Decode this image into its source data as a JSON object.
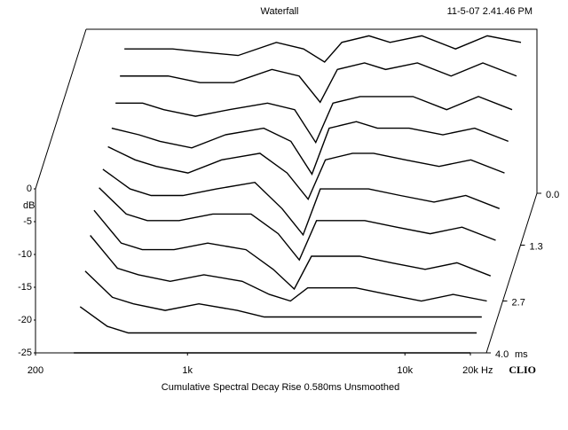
{
  "chart_data": {
    "type": "waterfall",
    "title": "Waterfall",
    "timestamp": "11-5-07 2.41.46 PM",
    "ylabel": "dB",
    "xunit": "Hz",
    "zunit": "ms",
    "caption": "Cumulative Spectral Decay   Rise 0.580ms   Unsmoothed",
    "brand": "CLIO",
    "xscale": "log",
    "xlim": [
      200,
      24000
    ],
    "ylim": [
      -25,
      0
    ],
    "zlim": [
      0,
      4
    ],
    "xticks": [
      200,
      {
        "value": 1000,
        "label": "1k"
      },
      {
        "value": 10000,
        "label": "10k"
      },
      {
        "value": 20000,
        "label": "20k"
      }
    ],
    "yticks": [
      0,
      -5,
      -10,
      -15,
      -20,
      -25
    ],
    "zticks": [
      {
        "value": 0,
        "label": "0.0"
      },
      1.3,
      2.7,
      {
        "value": 4,
        "label": "4.0"
      }
    ],
    "x": [
      300,
      400,
      500,
      700,
      1000,
      1500,
      2000,
      2500,
      3000,
      4000,
      5000,
      7000,
      10000,
      14000,
      20000
    ],
    "slices": [
      {
        "time": 0,
        "values": [
          -3,
          -3,
          -3,
          -3.5,
          -4,
          -2,
          -3,
          -5,
          -2,
          -1,
          -2,
          -1,
          -3,
          -1,
          -2
        ]
      },
      {
        "time": 0.35,
        "values": [
          -5,
          -5,
          -5,
          -6,
          -6,
          -4,
          -5,
          -9,
          -4,
          -3,
          -4,
          -3,
          -5,
          -3,
          -5
        ]
      },
      {
        "time": 0.7,
        "values": [
          -7,
          -7,
          -8,
          -9,
          -8,
          -7,
          -8,
          -13,
          -7,
          -6,
          -6,
          -6,
          -8,
          -6,
          -8
        ]
      },
      {
        "time": 1,
        "values": [
          -9,
          -10,
          -11,
          -12,
          -10,
          -9,
          -11,
          -16,
          -9,
          -8,
          -9,
          -9,
          -10,
          -9,
          -11
        ]
      },
      {
        "time": 1.3,
        "values": [
          -10,
          -12,
          -13,
          -14,
          -12,
          -11,
          -14,
          -18,
          -12,
          -11,
          -11,
          -12,
          -13,
          -12,
          -14
        ]
      },
      {
        "time": 1.7,
        "values": [
          -11,
          -14,
          -15,
          -15,
          -14,
          -13,
          -17,
          -21,
          -14,
          -14,
          -14,
          -15,
          -16,
          -15,
          -17
        ]
      },
      {
        "time": 2,
        "values": [
          -12,
          -16,
          -17,
          -17,
          -16,
          -16,
          -19,
          -23,
          -17,
          -17,
          -17,
          -18,
          -19,
          -18,
          -20
        ]
      },
      {
        "time": 2.4,
        "values": [
          -13,
          -18,
          -19,
          -19,
          -18,
          -19,
          -22,
          -25,
          -20,
          -20,
          -20,
          -21,
          -22,
          -21,
          -23
        ]
      },
      {
        "time": 2.7,
        "values": [
          -15,
          -20,
          -21,
          -22,
          -21,
          -22,
          -24,
          -25,
          -23,
          -23,
          -23,
          -24,
          -25,
          -24,
          -25
        ]
      },
      {
        "time": 3.1,
        "values": [
          -18,
          -22,
          -23,
          -24,
          -23,
          -24,
          -25,
          -25,
          -25,
          -25,
          -25,
          -25,
          -25,
          -25,
          -25
        ]
      },
      {
        "time": 3.5,
        "values": [
          -21,
          -24,
          -25,
          -25,
          -25,
          -25,
          -25,
          -25,
          -25,
          -25,
          -25,
          -25,
          -25,
          -25,
          -25
        ]
      },
      {
        "time": 4,
        "values": [
          -25,
          -25,
          -25,
          -25,
          -25,
          -25,
          -25,
          -25,
          -25,
          -25,
          -25,
          -25,
          -25,
          -25,
          -25
        ]
      }
    ]
  }
}
